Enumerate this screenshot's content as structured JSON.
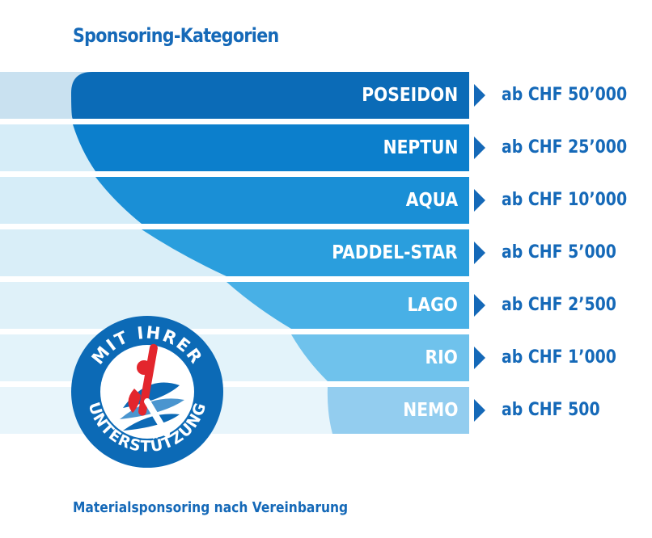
{
  "title": "Sponsoring-Kategorien",
  "footer": "Materialsponsoring nach Vereinbarung",
  "colors": {
    "heading": "#1569b8",
    "bands": [
      "#0b6bb7",
      "#0c7fcc",
      "#1a8fd6",
      "#2a9edd",
      "#48b0e6",
      "#6fc2ec",
      "#93cdef"
    ],
    "pale_bands": [
      "#c9e1f0",
      "#d6edf8",
      "#d6edf8",
      "#d9eef8",
      "#dff1f9",
      "#e3f3fa",
      "#e8f5fb"
    ]
  },
  "categories": [
    {
      "name": "POSEIDON",
      "price": "ab CHF 50’000"
    },
    {
      "name": "NEPTUN",
      "price": "ab CHF 25’000"
    },
    {
      "name": "AQUA",
      "price": "ab CHF 10’000"
    },
    {
      "name": "PADDEL-STAR",
      "price": "ab CHF 5’000"
    },
    {
      "name": "LAGO",
      "price": "ab CHF 2’500"
    },
    {
      "name": "RIO",
      "price": "ab CHF 1’000"
    },
    {
      "name": "NEMO",
      "price": "ab CHF 500"
    }
  ],
  "badge": {
    "text_top": "MIT IHRER",
    "text_bottom": "UNTERSTÜTZUNG",
    "icon": "paddler-logo-icon",
    "ring_color": "#0c6ab6",
    "accent_color": "#e3262d"
  }
}
